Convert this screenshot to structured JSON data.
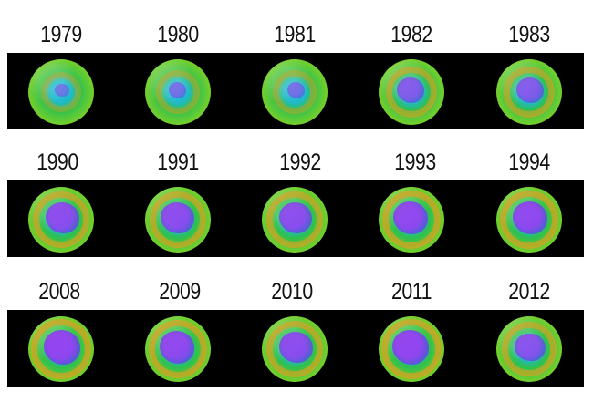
{
  "rows": [
    {
      "years": [
        "1979",
        "1980",
        "1981",
        "1982",
        "1983"
      ],
      "hole_levels": [
        0.15,
        0.25,
        0.25,
        0.55,
        0.55
      ]
    },
    {
      "years": [
        "1990",
        "1991",
        "1992",
        "1993",
        "1994"
      ],
      "hole_levels": [
        0.75,
        0.75,
        0.72,
        0.8,
        0.8
      ]
    },
    {
      "years": [
        "2008",
        "2009",
        "2010",
        "2011",
        "2012"
      ],
      "hole_levels": [
        0.85,
        0.8,
        0.75,
        0.85,
        0.65
      ]
    }
  ],
  "colors": {
    "background": "#000000",
    "ozone_low": "#8e3cf0",
    "ozone_mid": "#20b7d0",
    "ozone_normal": "#45c43a",
    "ozone_high": "#e8952a"
  }
}
